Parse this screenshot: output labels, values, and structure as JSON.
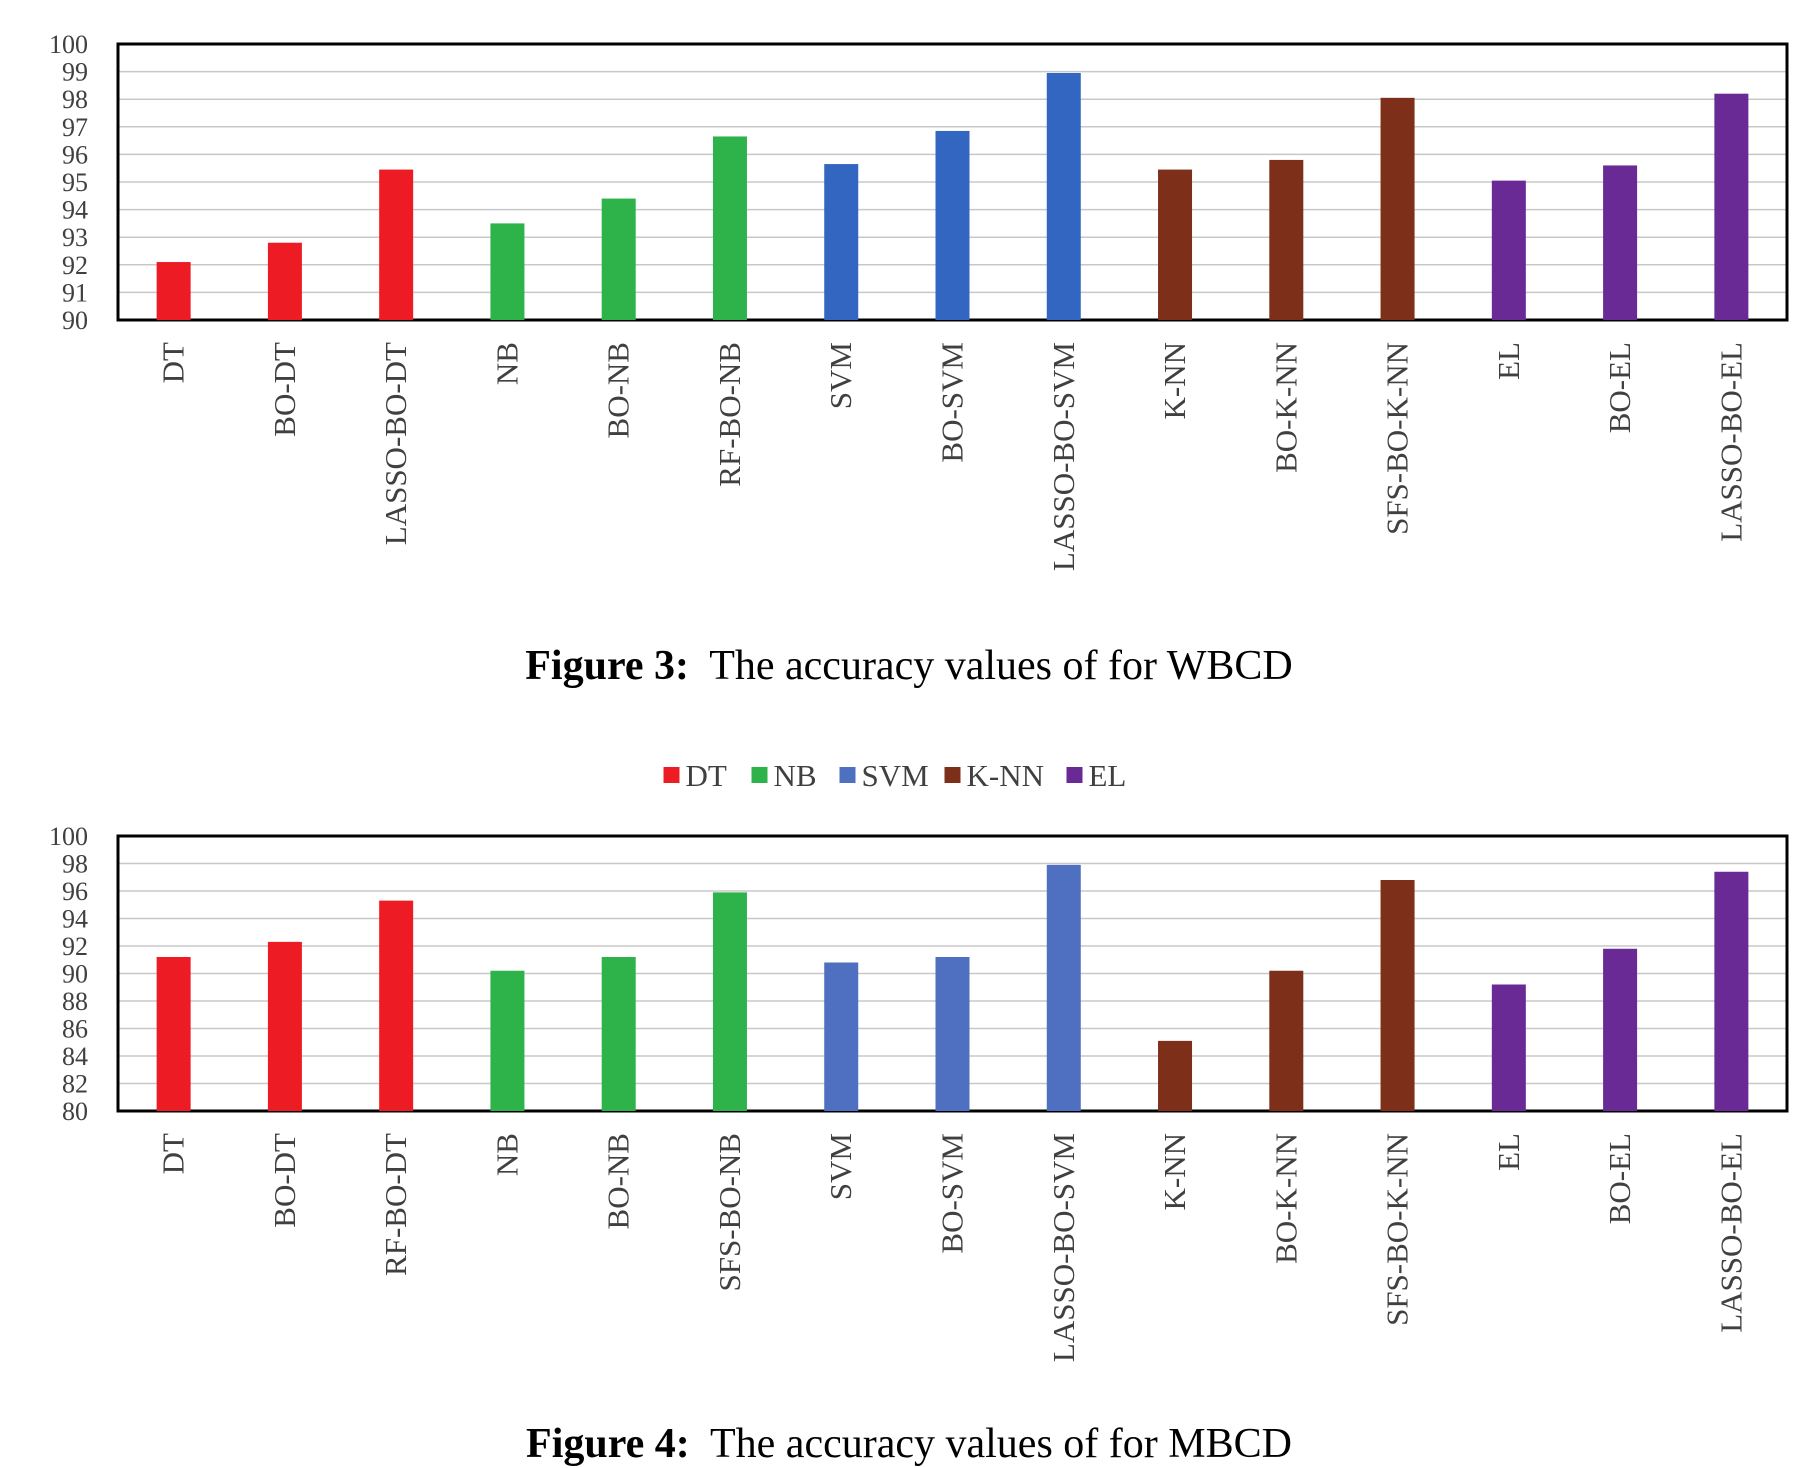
{
  "chart_data": [
    {
      "type": "bar",
      "categories": [
        "DT",
        "BO-DT",
        "LASSO-BO-DT",
        "NB",
        "BO-NB",
        "RF-BO-NB",
        "SVM",
        "BO-SVM",
        "LASSO-BO-SVM",
        "K-NN",
        "BO-K-NN",
        "SFS-BO-K-NN",
        "EL",
        "BO-EL",
        "LASSO-BO-EL"
      ],
      "values": [
        92.1,
        92.8,
        95.45,
        93.5,
        94.4,
        96.65,
        95.65,
        96.85,
        98.95,
        95.45,
        95.8,
        98.05,
        95.05,
        95.6,
        98.2
      ],
      "groups": [
        "DT",
        "DT",
        "DT",
        "NB",
        "NB",
        "NB",
        "SVM",
        "SVM",
        "SVM",
        "K-NN",
        "K-NN",
        "K-NN",
        "EL",
        "EL",
        "EL"
      ],
      "yticks": [
        "90",
        "91",
        "92",
        "93",
        "94",
        "95",
        "96",
        "97",
        "98",
        "99",
        "100"
      ],
      "ylim": [
        90,
        100
      ],
      "grid": true,
      "colors": {
        "DT": "#ed1c24",
        "NB": "#2db34a",
        "SVM": "#3366c0",
        "K-NN": "#7d2f1a",
        "EL": "#6a2a96"
      }
    },
    {
      "type": "bar",
      "categories": [
        "DT",
        "BO-DT",
        "RF-BO-DT",
        "NB",
        "BO-NB",
        "SFS-BO-NB",
        "SVM",
        "BO-SVM",
        "LASSO-BO-SVM",
        "K-NN",
        "BO-K-NN",
        "SFS-BO-K-NN",
        "EL",
        "BO-EL",
        "LASSO-BO-EL"
      ],
      "values": [
        91.2,
        92.3,
        95.3,
        90.2,
        91.2,
        95.9,
        90.8,
        91.2,
        97.9,
        85.1,
        90.2,
        96.8,
        89.2,
        91.8,
        97.4
      ],
      "groups": [
        "DT",
        "DT",
        "DT",
        "NB",
        "NB",
        "NB",
        "SVM",
        "SVM",
        "SVM",
        "K-NN",
        "K-NN",
        "K-NN",
        "EL",
        "EL",
        "EL"
      ],
      "yticks": [
        "80",
        "82",
        "84",
        "86",
        "88",
        "90",
        "92",
        "94",
        "96",
        "98",
        "100"
      ],
      "ylim": [
        80,
        100
      ],
      "grid": true,
      "legend": [
        "DT",
        "NB",
        "SVM",
        "K-NN",
        "EL"
      ],
      "legend_position": "top-center",
      "colors": {
        "DT": "#ed1c24",
        "NB": "#2db34a",
        "SVM": "#4f6fc0",
        "K-NN": "#7d2f1a",
        "EL": "#6a2a96"
      }
    }
  ],
  "captions": {
    "fig3_label": "Figure 3:",
    "fig3_text": "The accuracy values of for WBCD",
    "fig4_label": "Figure 4:",
    "fig4_text": "The accuracy values of for MBCD"
  }
}
